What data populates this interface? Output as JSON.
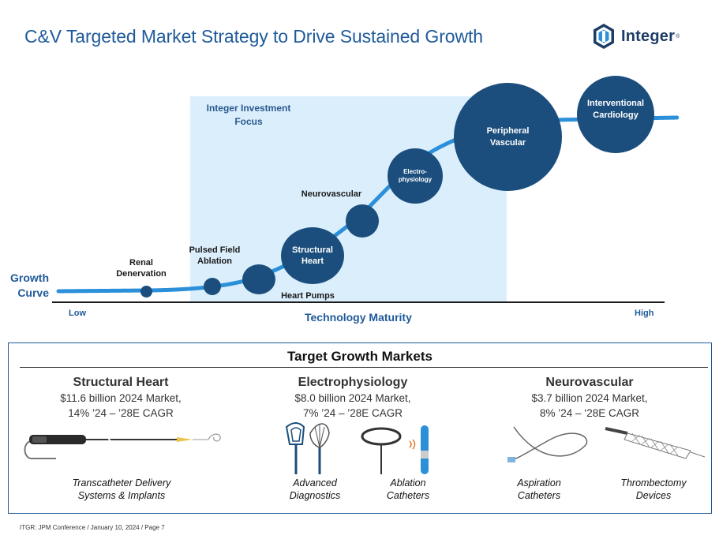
{
  "page": {
    "title": "C&V Targeted Market Strategy to Drive Sustained Growth",
    "footer": "ITGR: JPM Conference / January 10, 2024 / Page 7"
  },
  "logo": {
    "name": "Integer",
    "reg_mark": "®",
    "icon": "integer-hexagon-logo",
    "color": "#1d3d66"
  },
  "colors": {
    "accent": "#1f5a9a",
    "bubble": "#1b4e7d",
    "focus_area": "#dbeefc",
    "curve": "#2b90d9"
  },
  "growth_chart": {
    "focus_label_line1": "Integer Investment",
    "focus_label_line2": "Focus",
    "y_label_line1": "Growth",
    "y_label_line2": "Curve",
    "x_label": "Technology Maturity",
    "x_low": "Low",
    "x_high": "High",
    "segments": {
      "renal_1": "Renal",
      "renal_2": "Denervation",
      "pfa_1": "Pulsed Field",
      "pfa_2": "Ablation",
      "heart_pumps": "Heart Pumps",
      "structural_1": "Structural",
      "structural_2": "Heart",
      "neurovascular": "Neurovascular",
      "ep_1": "Electro-",
      "ep_2": "physiology",
      "pv_1": "Peripheral",
      "pv_2": "Vascular",
      "ic_1": "Interventional",
      "ic_2": "Cardiology"
    }
  },
  "target_markets": {
    "title": "Target Growth Markets",
    "markets": [
      {
        "name": "Structural Heart",
        "line1": "$11.6 billion 2024 Market,",
        "line2": "14% ’24 – ’28E CAGR"
      },
      {
        "name": "Electrophysiology",
        "line1": "$8.0 billion 2024 Market,",
        "line2": "7% ’24 – ’28E CAGR"
      },
      {
        "name": "Neurovascular",
        "line1": "$3.7 billion 2024 Market,",
        "line2": "8% ’24 – ‘28E CAGR"
      }
    ],
    "devices": {
      "tdsi_1": "Transcatheter Delivery",
      "tdsi_2": "Systems & Implants",
      "adx_1": "Advanced",
      "adx_2": "Diagnostics",
      "abl_1": "Ablation",
      "abl_2": "Catheters",
      "asp_1": "Aspiration",
      "asp_2": "Catheters",
      "thr_1": "Thrombectomy",
      "thr_2": "Devices"
    }
  }
}
